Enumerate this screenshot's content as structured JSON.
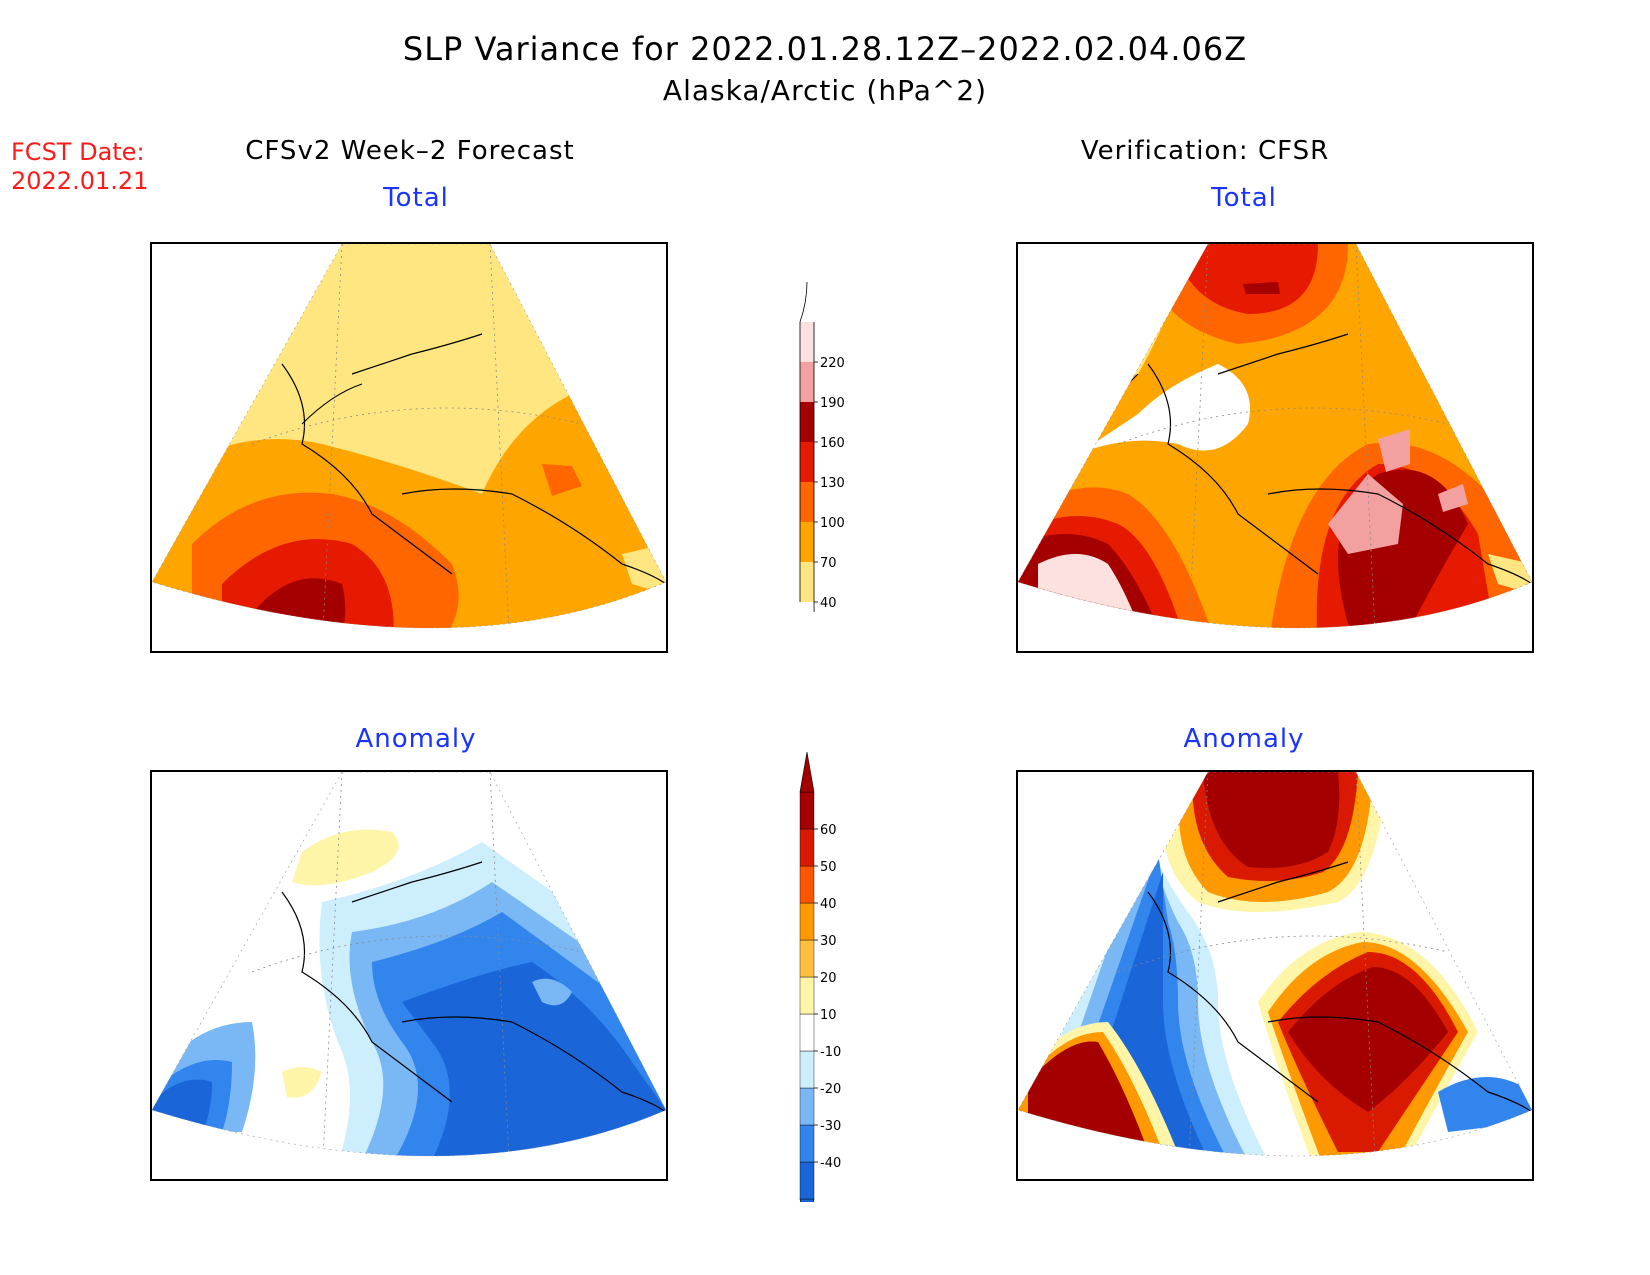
{
  "title": "SLP Variance for 2022.01.28.12Z–2022.02.04.06Z",
  "subtitle": "Alaska/Arctic (hPa^2)",
  "fcst_date_label": "FCST Date:",
  "fcst_date_value": "2022.01.21",
  "columns": {
    "left": "CFSv2 Week–2 Forecast",
    "right": "Verification: CFSR"
  },
  "panels": {
    "forecast_total": "Total",
    "verification_total": "Total",
    "forecast_anomaly": "Anomaly",
    "verification_anomaly": "Anomaly"
  },
  "colorbars": {
    "total": {
      "labels": [
        "40",
        "70",
        "100",
        "130",
        "160",
        "190",
        "220"
      ],
      "colors": [
        "#ffe680",
        "#ffa500",
        "#ff6600",
        "#e61a00",
        "#a50000",
        "#f2a0a0",
        "#fde0e0"
      ]
    },
    "anomaly": {
      "labels": [
        "-40",
        "-30",
        "-20",
        "-10",
        "10",
        "20",
        "30",
        "40",
        "50",
        "60"
      ],
      "colors": [
        "#1a66d9",
        "#3385ee",
        "#7ab8f5",
        "#cdeefd",
        "#ffffff",
        "#fff5a8",
        "#ffc040",
        "#ff9900",
        "#ff5500",
        "#d91a00",
        "#a50000"
      ]
    }
  },
  "colors": {
    "title_red": "#ff1a1a",
    "panel_title_blue": "#1a33ff"
  }
}
